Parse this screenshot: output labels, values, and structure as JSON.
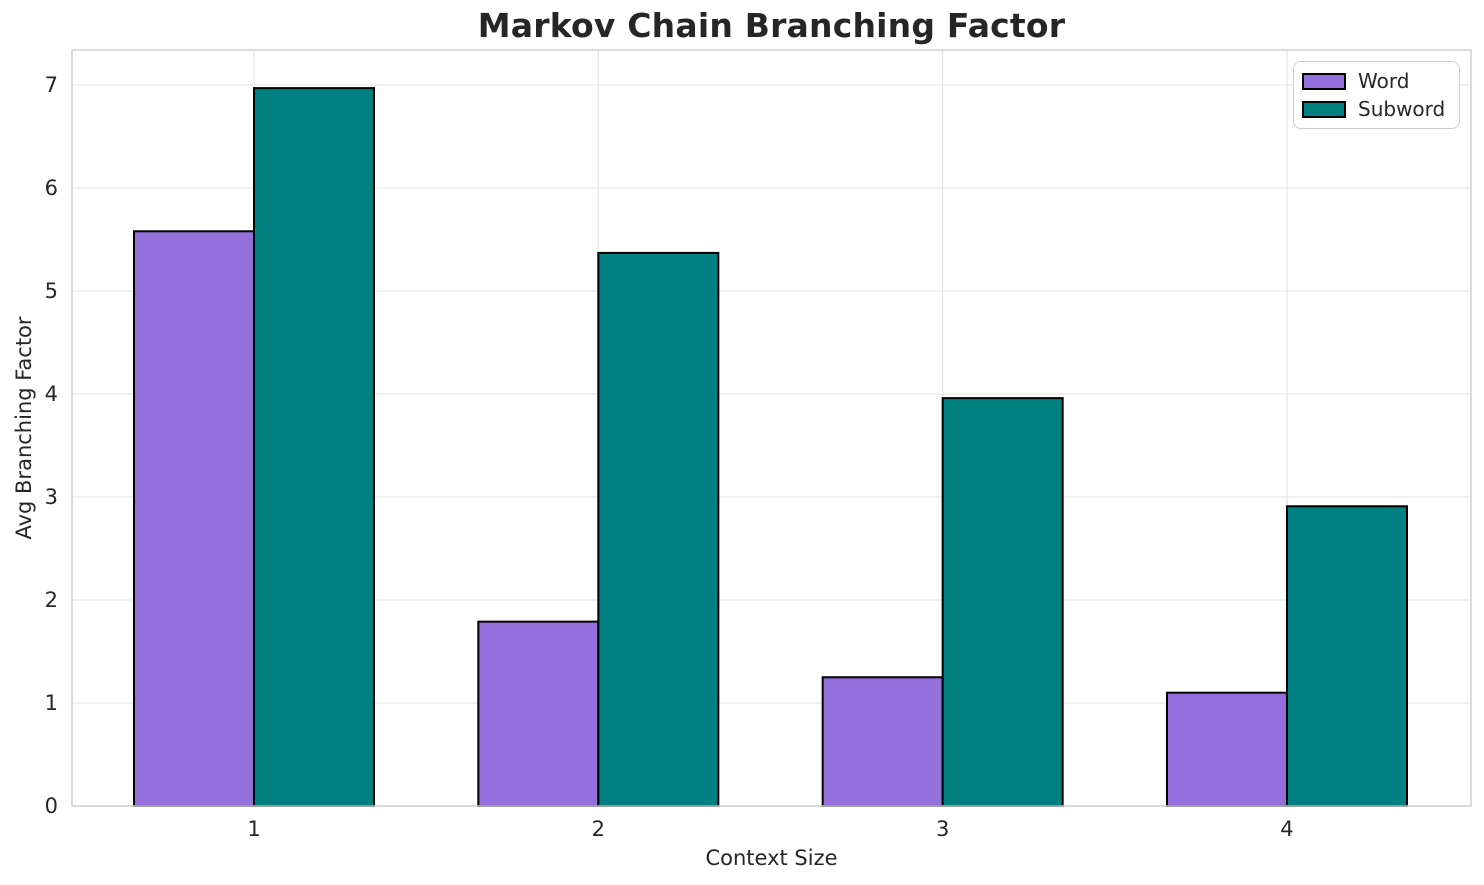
{
  "chart_data": {
    "type": "bar",
    "title": "Markov Chain Branching Factor",
    "xlabel": "Context Size",
    "ylabel": "Avg Branching Factor",
    "categories": [
      "1",
      "2",
      "3",
      "4"
    ],
    "series": [
      {
        "name": "Word",
        "color": "#9370DB",
        "values": [
          5.58,
          1.79,
          1.25,
          1.1
        ]
      },
      {
        "name": "Subword",
        "color": "#008080",
        "values": [
          6.97,
          5.37,
          3.96,
          2.91
        ]
      }
    ],
    "bar_edge_color": "#000000",
    "yticks": [
      0,
      1,
      2,
      3,
      4,
      5,
      6,
      7
    ],
    "ylim": [
      0,
      7.34
    ],
    "grid": true,
    "legend_position": "upper right",
    "colors": {
      "grid": "#e7e7e7",
      "spine": "#d0d0d0",
      "text": "#262626",
      "background": "#ffffff"
    }
  }
}
